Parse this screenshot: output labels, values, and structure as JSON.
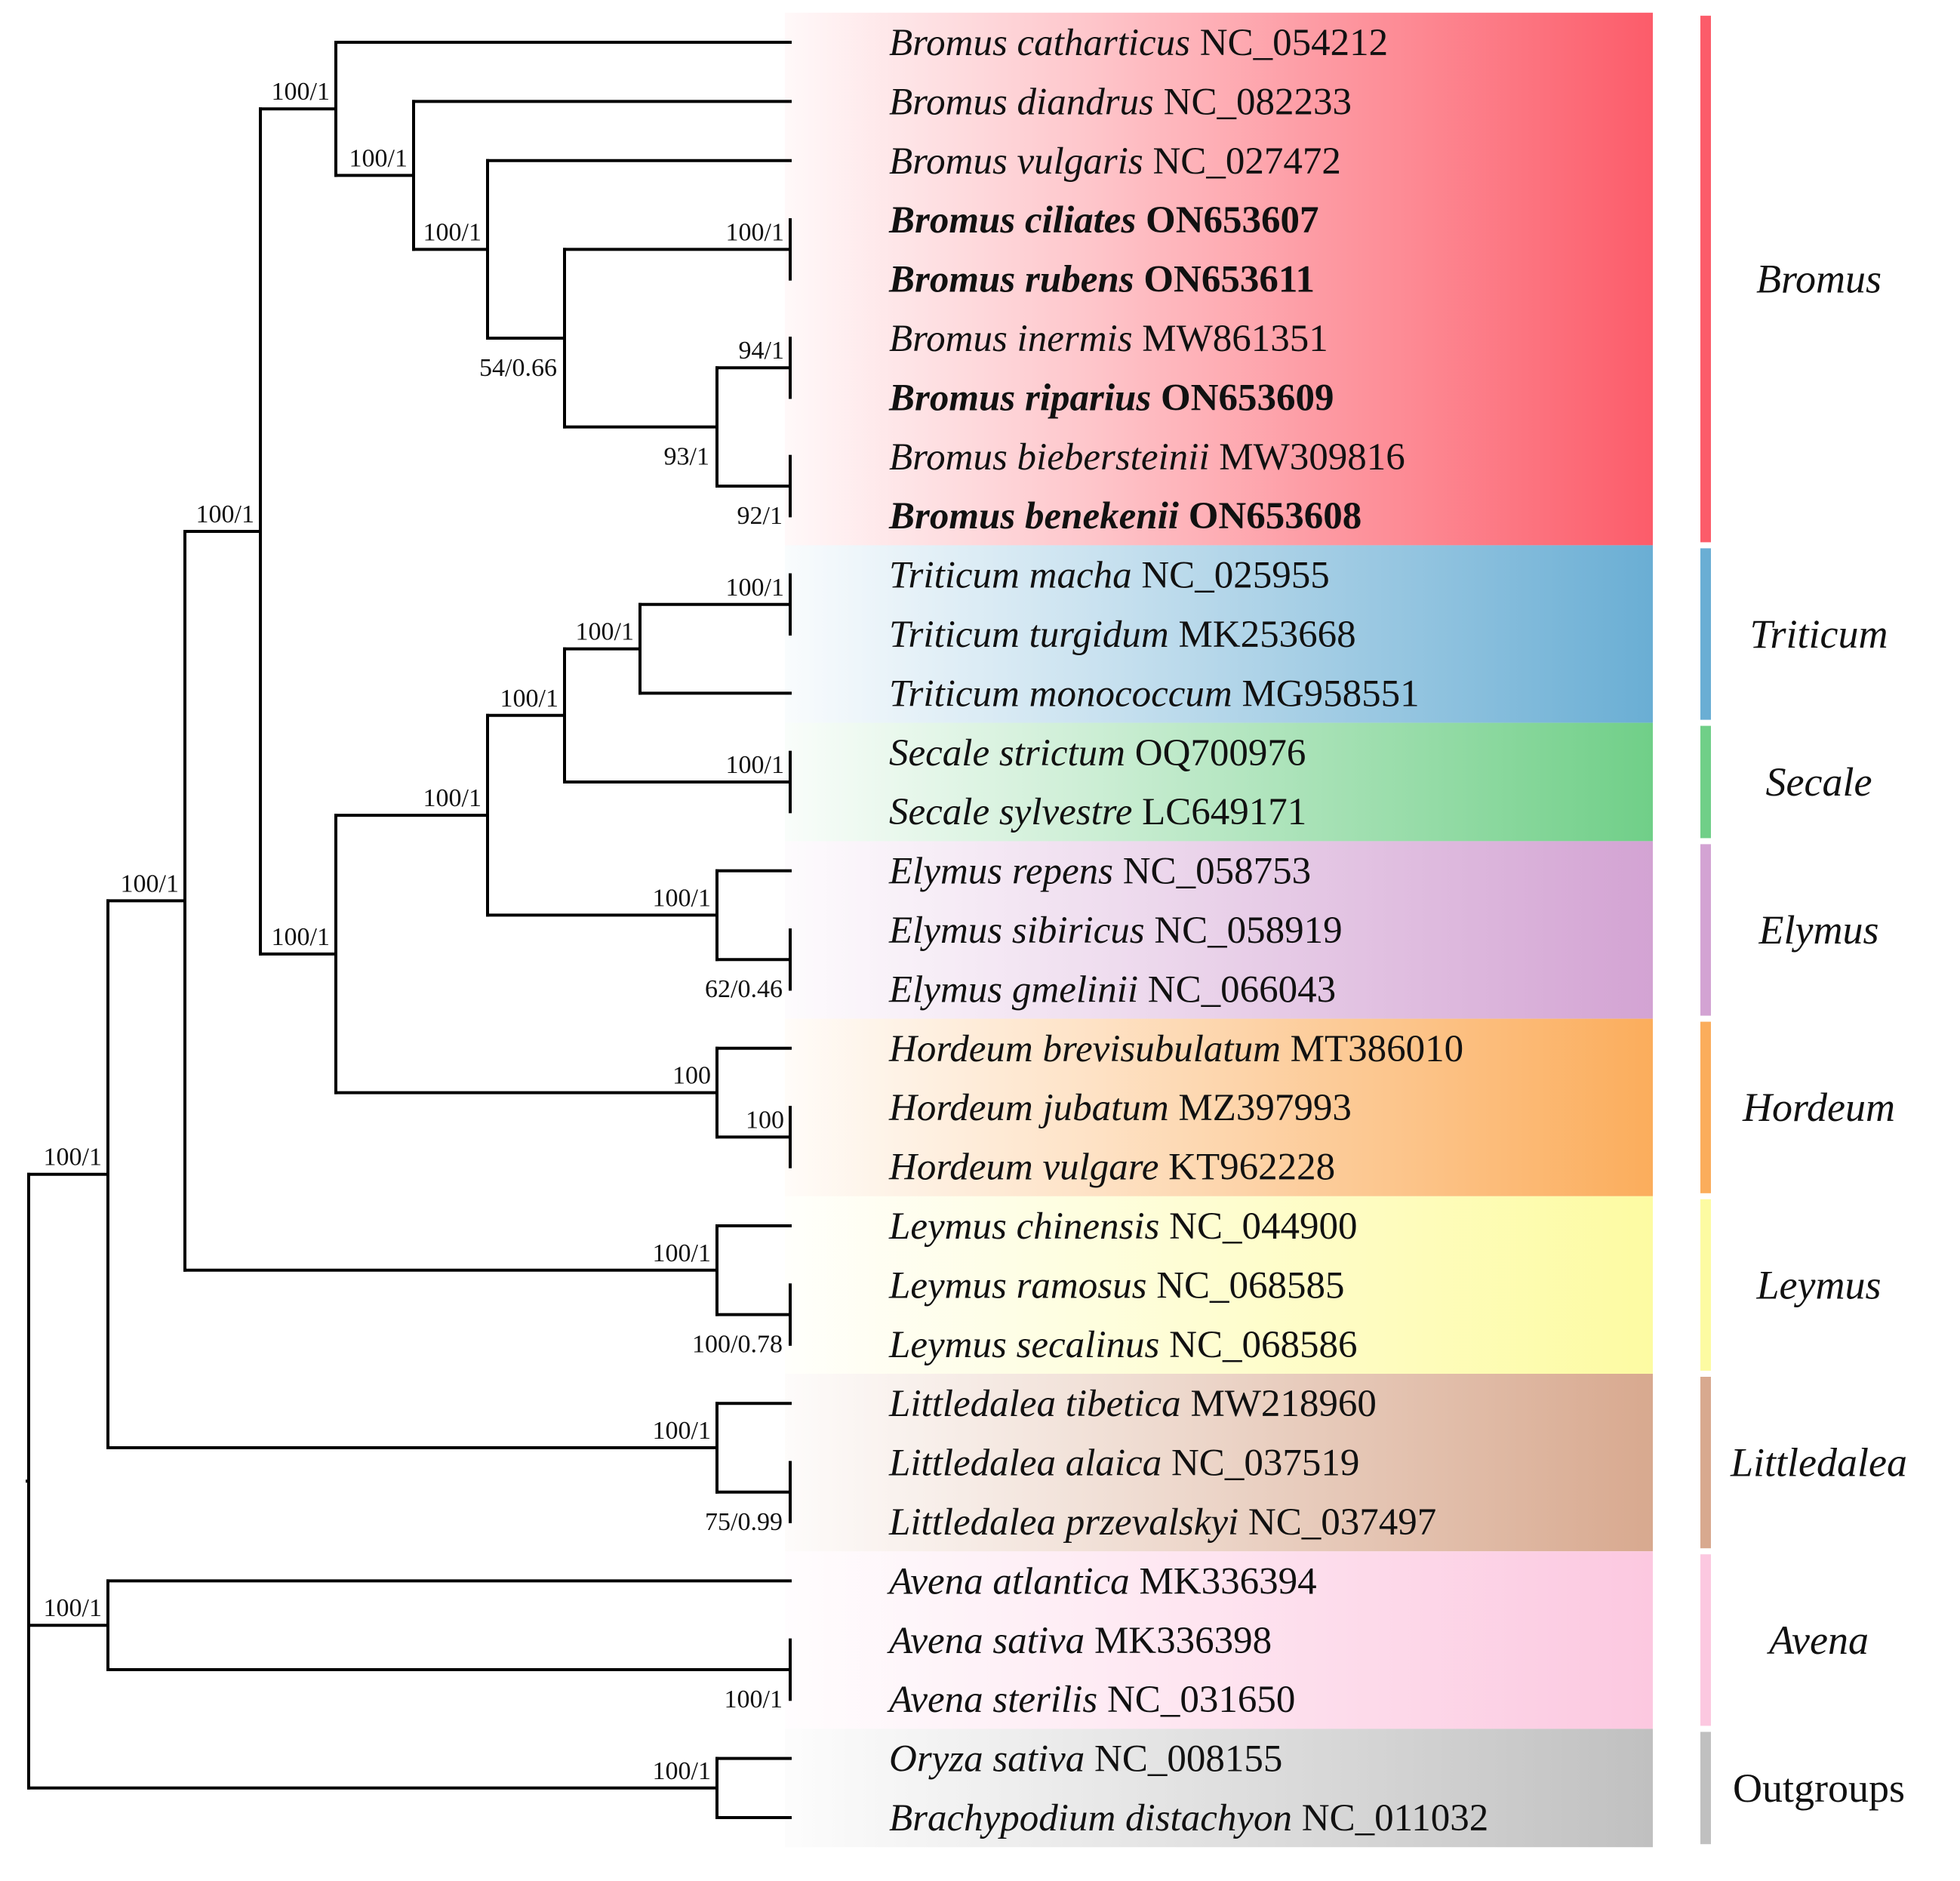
{
  "leaves": [
    {
      "species": "Bromus catharticus",
      "accession": "NC_054212",
      "bold": false
    },
    {
      "species": "Bromus diandrus",
      "accession": "NC_082233",
      "bold": false
    },
    {
      "species": "Bromus vulgaris",
      "accession": "NC_027472",
      "bold": false
    },
    {
      "species": "Bromus ciliates",
      "accession": "ON653607",
      "bold": true
    },
    {
      "species": "Bromus rubens",
      "accession": "ON653611",
      "bold": true
    },
    {
      "species": "Bromus inermis",
      "accession": "MW861351",
      "bold": false
    },
    {
      "species": "Bromus riparius",
      "accession": "ON653609",
      "bold": true
    },
    {
      "species": "Bromus biebersteinii",
      "accession": "MW309816",
      "bold": false
    },
    {
      "species": "Bromus benekenii",
      "accession": "ON653608",
      "bold": true
    },
    {
      "species": "Triticum macha",
      "accession": "NC_025955",
      "bold": false
    },
    {
      "species": "Triticum turgidum",
      "accession": "MK253668",
      "bold": false
    },
    {
      "species": "Triticum monococcum",
      "accession": "MG958551",
      "bold": false
    },
    {
      "species": "Secale strictum",
      "accession": "OQ700976",
      "bold": false
    },
    {
      "species": "Secale sylvestre",
      "accession": "LC649171",
      "bold": false
    },
    {
      "species": "Elymus repens",
      "accession": "NC_058753",
      "bold": false
    },
    {
      "species": "Elymus sibiricus",
      "accession": "NC_058919",
      "bold": false
    },
    {
      "species": "Elymus gmelinii",
      "accession": "NC_066043",
      "bold": false
    },
    {
      "species": "Hordeum brevisubulatum",
      "accession": "MT386010",
      "bold": false
    },
    {
      "species": "Hordeum jubatum",
      "accession": "MZ397993",
      "bold": false
    },
    {
      "species": "Hordeum vulgare",
      "accession": "KT962228",
      "bold": false
    },
    {
      "species": "Leymus chinensis",
      "accession": "NC_044900",
      "bold": false
    },
    {
      "species": "Leymus ramosus",
      "accession": "NC_068585",
      "bold": false
    },
    {
      "species": "Leymus secalinus",
      "accession": "NC_068586",
      "bold": false
    },
    {
      "species": "Littledalea tibetica",
      "accession": "MW218960",
      "bold": false
    },
    {
      "species": "Littledalea alaica",
      "accession": "NC_037519",
      "bold": false
    },
    {
      "species": "Littledalea przevalskyi",
      "accession": "NC_037497",
      "bold": false
    },
    {
      "species": "Avena atlantica",
      "accession": "MK336394",
      "bold": false
    },
    {
      "species": "Avena sativa",
      "accession": "MK336398",
      "bold": false
    },
    {
      "species": "Avena sterilis",
      "accession": "NC_031650",
      "bold": false
    },
    {
      "species": "Oryza sativa",
      "accession": "NC_008155",
      "bold": false
    },
    {
      "species": "Brachypodium distachyon",
      "accession": "NC_011032",
      "bold": false
    }
  ],
  "groups": [
    {
      "name": "Bromus",
      "first": 0,
      "last": 8,
      "color": "#fc5c6a",
      "italic": true
    },
    {
      "name": "Triticum",
      "first": 9,
      "last": 11,
      "color": "#6aaed4",
      "italic": true
    },
    {
      "name": "Secale",
      "first": 12,
      "last": 13,
      "color": "#70cf88",
      "italic": true
    },
    {
      "name": "Elymus",
      "first": 14,
      "last": 16,
      "color": "#d3a3d3",
      "italic": true
    },
    {
      "name": "Hordeum",
      "first": 17,
      "last": 19,
      "color": "#fbad5c",
      "italic": true
    },
    {
      "name": "Leymus",
      "first": 20,
      "last": 22,
      "color": "#fdfba2",
      "italic": true
    },
    {
      "name": "Littledalea",
      "first": 23,
      "last": 25,
      "color": "#d8a98f",
      "italic": true
    },
    {
      "name": "Avena",
      "first": 26,
      "last": 28,
      "color": "#fcc8e0",
      "italic": true
    },
    {
      "name": "Outgroups",
      "first": 29,
      "last": 30,
      "color": "#c0c0c0",
      "italic": false
    }
  ],
  "tree": {
    "name": "root",
    "children": [
      {
        "name": "core",
        "support": "100/1",
        "children": [
          {
            "name": "n2",
            "support": "100/1",
            "children": [
              {
                "name": "n3",
                "support": "100/1",
                "children": [
                  {
                    "name": "n4",
                    "support": "100/1",
                    "children": [
                      {
                        "leaf": 0
                      },
                      {
                        "name": "n5",
                        "support": "100/1",
                        "children": [
                          {
                            "leaf": 1
                          },
                          {
                            "name": "n6",
                            "support": "100/1",
                            "children": [
                              {
                                "leaf": 2
                              },
                              {
                                "name": "n7",
                                "support": "54/0.66",
                                "children": [
                                  {
                                    "name": "n8",
                                    "support": "100/1",
                                    "children": [
                                      {
                                        "leaf": 3
                                      },
                                      {
                                        "leaf": 4
                                      }
                                    ]
                                  },
                                  {
                                    "name": "n9",
                                    "support": "93/1",
                                    "children": [
                                      {
                                        "name": "n10",
                                        "support": "94/1",
                                        "children": [
                                          {
                                            "leaf": 5
                                          },
                                          {
                                            "leaf": 6
                                          }
                                        ]
                                      },
                                      {
                                        "name": "n11",
                                        "support": "92/1",
                                        "children": [
                                          {
                                            "leaf": 7
                                          },
                                          {
                                            "leaf": 8
                                          }
                                        ]
                                      }
                                    ]
                                  }
                                ]
                              }
                            ]
                          }
                        ]
                      }
                    ]
                  },
                  {
                    "name": "n12",
                    "support": "100/1",
                    "children": [
                      {
                        "name": "n13",
                        "support": "100/1",
                        "children": [
                          {
                            "name": "n14",
                            "support": "100/1",
                            "children": [
                              {
                                "name": "n15",
                                "support": "100/1",
                                "children": [
                                  {
                                    "name": "n16",
                                    "support": "100/1",
                                    "children": [
                                      {
                                        "leaf": 9
                                      },
                                      {
                                        "leaf": 10
                                      }
                                    ]
                                  },
                                  {
                                    "leaf": 11
                                  }
                                ]
                              },
                              {
                                "name": "n17",
                                "support": "100/1",
                                "children": [
                                  {
                                    "leaf": 12
                                  },
                                  {
                                    "leaf": 13
                                  }
                                ]
                              }
                            ]
                          },
                          {
                            "name": "n18",
                            "support": "100/1",
                            "children": [
                              {
                                "leaf": 14
                              },
                              {
                                "name": "n19",
                                "support": "62/0.46",
                                "children": [
                                  {
                                    "leaf": 15
                                  },
                                  {
                                    "leaf": 16
                                  }
                                ]
                              }
                            ]
                          }
                        ]
                      },
                      {
                        "name": "n20",
                        "support": "100",
                        "children": [
                          {
                            "leaf": 17
                          },
                          {
                            "name": "n21",
                            "support": "100",
                            "children": [
                              {
                                "leaf": 18
                              },
                              {
                                "leaf": 19
                              }
                            ]
                          }
                        ]
                      }
                    ]
                  }
                ]
              },
              {
                "name": "n22",
                "support": "100/1",
                "children": [
                  {
                    "leaf": 20
                  },
                  {
                    "name": "n23",
                    "support": "100/0.78",
                    "children": [
                      {
                        "leaf": 21
                      },
                      {
                        "leaf": 22
                      }
                    ]
                  }
                ]
              }
            ]
          },
          {
            "name": "n24",
            "support": "100/1",
            "children": [
              {
                "leaf": 23
              },
              {
                "name": "n25",
                "support": "75/0.99",
                "children": [
                  {
                    "leaf": 24
                  },
                  {
                    "leaf": 25
                  }
                ]
              }
            ]
          }
        ]
      },
      {
        "name": "n26",
        "support": "100/1",
        "children": [
          {
            "leaf": 26
          },
          {
            "name": "n27",
            "support": "100/1",
            "children": [
              {
                "leaf": 27
              },
              {
                "leaf": 28
              }
            ]
          }
        ]
      },
      {
        "name": "n28",
        "support": "100/1",
        "children": [
          {
            "leaf": 29
          },
          {
            "leaf": 30
          }
        ]
      }
    ]
  }
}
